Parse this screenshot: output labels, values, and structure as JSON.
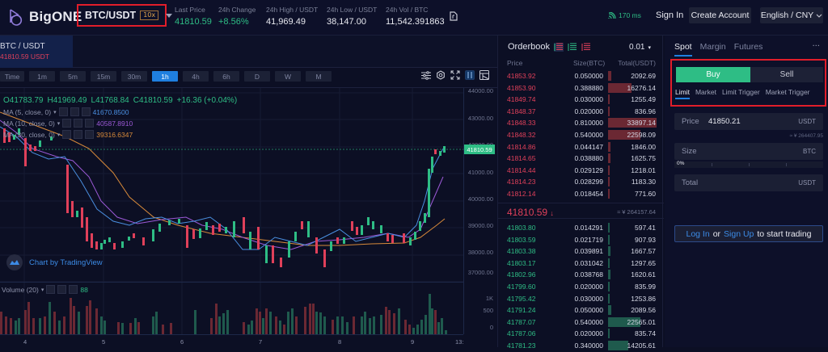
{
  "header": {
    "logo_text": "BigONE",
    "pair": "BTC/USDT",
    "leverage_badge": "10x",
    "stats": [
      {
        "label": "Last Price",
        "value": "41810.59",
        "color": "green"
      },
      {
        "label": "24h Change",
        "value": "+8.56%",
        "color": "green"
      },
      {
        "label": "24h High / USDT",
        "value": "41,969.49",
        "color": "white"
      },
      {
        "label": "24h Low / USDT",
        "value": "38,147.00",
        "color": "white"
      },
      {
        "label": "24h Vol / BTC",
        "value": "11,542.391863",
        "color": "white"
      }
    ],
    "latency": "170 ms",
    "sign_in": "Sign In",
    "create_account": "Create Account",
    "language": "English / CNY"
  },
  "chart": {
    "symbol_tab": {
      "pair": "BTC / USDT",
      "price": "41810.59 USDT"
    },
    "timeframes": [
      "Time",
      "1m",
      "5m",
      "15m",
      "30m",
      "1h",
      "4h",
      "6h",
      "D",
      "W",
      "M"
    ],
    "active_timeframe": "1h",
    "ohlc": {
      "o": "O41783.79",
      "h": "H41969.49",
      "l": "L41768.84",
      "c": "C41810.59",
      "change": "+16.36 (+0.04%)"
    },
    "indicators": [
      {
        "label": "MA (5, close, 0)",
        "value": "41670.8500",
        "color": "#4a8fe0"
      },
      {
        "label": "MA (10, close, 0)",
        "value": "40587.8910",
        "color": "#9b59d6"
      },
      {
        "label": "MA (30, close, 0)",
        "value": "39316.6347",
        "color": "#d88a3a"
      }
    ],
    "watermark": "Chart by TradingView",
    "volume_label": "Volume (20)",
    "volume_value": "88",
    "current_price_tag": "41810.59",
    "colors": {
      "up": "#2ebd85",
      "down": "#e0405a",
      "accent": "#1f7fe0"
    }
  },
  "chart_data": {
    "type": "candlestick",
    "title": "BTC/USDT 1h",
    "y_ticks": [
      "44000.00",
      "43000.00",
      "42000.00",
      "41000.00",
      "40000.00",
      "39000.00",
      "38000.00",
      "37000.00"
    ],
    "volume_ticks": [
      "1K",
      "500",
      "0"
    ],
    "x_ticks": [
      "4",
      "5",
      "6",
      "7",
      "8",
      "9",
      "13:"
    ],
    "last_price": 41810.59,
    "ylim": [
      37000,
      44000
    ]
  },
  "orderbook": {
    "title": "Orderbook",
    "precision": "0.01",
    "columns": [
      "Price",
      "Size(BTC)",
      "Total(USDT)"
    ],
    "asks": [
      {
        "price": "41853.92",
        "size": "0.050000",
        "total": "2092.69",
        "depth": 6
      },
      {
        "price": "41853.90",
        "size": "0.388880",
        "total": "16276.14",
        "depth": 48
      },
      {
        "price": "41849.74",
        "size": "0.030000",
        "total": "1255.49",
        "depth": 4
      },
      {
        "price": "41848.37",
        "size": "0.020000",
        "total": "836.96",
        "depth": 3
      },
      {
        "price": "41848.33",
        "size": "0.810000",
        "total": "33897.14",
        "depth": 100
      },
      {
        "price": "41848.32",
        "size": "0.540000",
        "total": "22598.09",
        "depth": 67
      },
      {
        "price": "41814.86",
        "size": "0.044147",
        "total": "1846.00",
        "depth": 5
      },
      {
        "price": "41814.65",
        "size": "0.038880",
        "total": "1625.75",
        "depth": 5
      },
      {
        "price": "41814.44",
        "size": "0.029129",
        "total": "1218.01",
        "depth": 4
      },
      {
        "price": "41814.23",
        "size": "0.028299",
        "total": "1183.30",
        "depth": 4
      },
      {
        "price": "41812.14",
        "size": "0.018454",
        "total": "771.60",
        "depth": 3
      }
    ],
    "mid_price": "41810.59",
    "mid_cny": "≈ ¥ 264157.64",
    "bids": [
      {
        "price": "41803.80",
        "size": "0.014291",
        "total": "597.41",
        "depth": 2
      },
      {
        "price": "41803.59",
        "size": "0.021719",
        "total": "907.93",
        "depth": 3
      },
      {
        "price": "41803.38",
        "size": "0.039891",
        "total": "1667.57",
        "depth": 5
      },
      {
        "price": "41803.17",
        "size": "0.031042",
        "total": "1297.65",
        "depth": 4
      },
      {
        "price": "41802.96",
        "size": "0.038768",
        "total": "1620.61",
        "depth": 5
      },
      {
        "price": "41799.60",
        "size": "0.020000",
        "total": "835.99",
        "depth": 3
      },
      {
        "price": "41795.42",
        "size": "0.030000",
        "total": "1253.86",
        "depth": 4
      },
      {
        "price": "41791.24",
        "size": "0.050000",
        "total": "2089.56",
        "depth": 6
      },
      {
        "price": "41787.07",
        "size": "0.540000",
        "total": "22565.01",
        "depth": 67
      },
      {
        "price": "41787.06",
        "size": "0.020000",
        "total": "835.74",
        "depth": 3
      },
      {
        "price": "41781.23",
        "size": "0.340000",
        "total": "14205.61",
        "depth": 42
      }
    ]
  },
  "trade": {
    "tabs": [
      "Spot",
      "Margin",
      "Futures"
    ],
    "active_tab": "Spot",
    "more": "···",
    "buy": "Buy",
    "sell": "Sell",
    "order_types": [
      "Limit",
      "Market",
      "Limit Trigger",
      "Market Trigger"
    ],
    "price": {
      "label": "Price",
      "value": "41850.21",
      "unit": "USDT"
    },
    "cny_hint": "≈ ¥ 264407.95",
    "size": {
      "label": "Size",
      "unit": "BTC"
    },
    "slider_pct": "0%",
    "total": {
      "label": "Total",
      "unit": "USDT"
    },
    "login": {
      "login": "Log In",
      "or": "or",
      "signup": "Sign Up",
      "rest": "to start trading"
    }
  }
}
